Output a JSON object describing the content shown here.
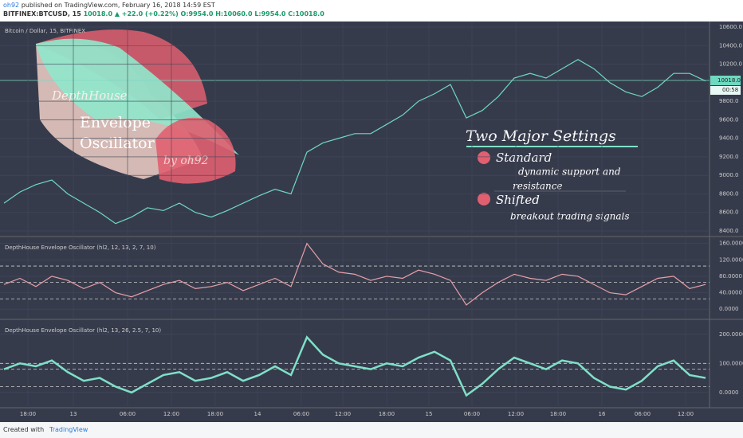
{
  "header": {
    "author": "oh92",
    "published": "published on TradingView.com, February 16, 2018 14:59 EST",
    "symbol": "BITFINEX:BTCUSD, 15",
    "last": "10018.0",
    "change": "▲ +22.0 (+0.22%)",
    "ohlc": "O:9954.0 H:10060.0 L:9954.0 C:10018.0"
  },
  "overlay": {
    "title1": "DepthHouse",
    "title2": "Envelope",
    "title3": "Oscillator",
    "by": "by oh92",
    "settings_title": "Two Major Settings",
    "standard": "Standard",
    "standard_desc1": "dynamic support and",
    "standard_desc2": "resistance",
    "shifted": "Shifted",
    "shifted_desc": "breakout trading signals"
  },
  "price_label": {
    "value": "10018.0",
    "countdown": "00:58"
  },
  "footer": {
    "created": "Created with",
    "brand": "TradingView"
  },
  "chart_data": [
    {
      "type": "line",
      "title": "Bitcoin / Dollar, 15, BITFINEX",
      "color": "#6fd8c0",
      "xlim": [
        -0.25,
        44.25
      ],
      "ylim": [
        8340,
        10660
      ],
      "yticks": [
        {
          "value": 10600,
          "label": "10600.0"
        },
        {
          "value": 10400,
          "label": "10400.0"
        },
        {
          "value": 10200,
          "label": "10200.0"
        },
        {
          "value": 9800,
          "label": "9800.0"
        },
        {
          "value": 9600,
          "label": "9600.0"
        },
        {
          "value": 9400,
          "label": "9400.0"
        },
        {
          "value": 9200,
          "label": "9200.0"
        },
        {
          "value": 9000,
          "label": "9000.0"
        },
        {
          "value": 8800,
          "label": "8800.0"
        },
        {
          "value": 8600,
          "label": "8600.0"
        },
        {
          "value": 8400,
          "label": "8400.0"
        }
      ],
      "values": [
        8700,
        8820,
        8900,
        8950,
        8800,
        8700,
        8600,
        8480,
        8550,
        8650,
        8620,
        8700,
        8600,
        8550,
        8620,
        8700,
        8780,
        8850,
        8800,
        9250,
        9350,
        9400,
        9450,
        9450,
        9550,
        9650,
        9800,
        9880,
        9980,
        9620,
        9700,
        9850,
        10050,
        10100,
        10050,
        10150,
        10250,
        10150,
        10000,
        9900,
        9850,
        9950,
        10100,
        10100,
        10018
      ],
      "xticks": [
        {
          "value": 1.5,
          "label": "18:00"
        },
        {
          "value": 4.35,
          "label": "13"
        },
        {
          "value": 7.75,
          "label": "06:00"
        },
        {
          "value": 10.5,
          "label": "12:00"
        },
        {
          "value": 13.25,
          "label": "18:00"
        },
        {
          "value": 15.9,
          "label": "14"
        },
        {
          "value": 18.65,
          "label": "06:00"
        },
        {
          "value": 21.25,
          "label": "12:00"
        },
        {
          "value": 24,
          "label": "18:00"
        },
        {
          "value": 26.65,
          "label": "15"
        },
        {
          "value": 29.35,
          "label": "06:00"
        },
        {
          "value": 32.1,
          "label": "12:00"
        },
        {
          "value": 34.75,
          "label": "18:00"
        },
        {
          "value": 37.5,
          "label": "16"
        },
        {
          "value": 40.05,
          "label": "06:00"
        },
        {
          "value": 42.75,
          "label": "12:00"
        }
      ]
    },
    {
      "type": "line",
      "title": "DepthHouse Envelope Oscillator (hl2, 12, 13, 2, 7, 10)",
      "color": "#e8a0a8",
      "xlim": [
        -0.25,
        44.25
      ],
      "ylim": [
        -23,
        173
      ],
      "yticks": [
        {
          "value": 160,
          "label": "160.0000"
        },
        {
          "value": 120,
          "label": "120.0000"
        },
        {
          "value": 80,
          "label": "80.0000"
        },
        {
          "value": 40,
          "label": "40.0000"
        },
        {
          "value": 0,
          "label": "0.0000"
        }
      ],
      "levels": [
        105,
        65,
        25
      ],
      "values": [
        60,
        75,
        55,
        80,
        70,
        50,
        65,
        40,
        30,
        45,
        60,
        70,
        50,
        55,
        65,
        45,
        60,
        75,
        55,
        160,
        110,
        90,
        85,
        70,
        80,
        75,
        95,
        85,
        70,
        10,
        40,
        65,
        85,
        75,
        70,
        85,
        80,
        60,
        40,
        35,
        55,
        75,
        80,
        50,
        60
      ]
    },
    {
      "type": "line",
      "title": "DepthHouse Envelope Oscillator (hl2, 13, 26, 2.5, 7, 10)",
      "color": "#7fe0c8",
      "xlim": [
        -0.25,
        44.25
      ],
      "ylim": [
        -47,
        246
      ],
      "yticks": [
        {
          "value": 200,
          "label": "200.0000"
        },
        {
          "value": 100,
          "label": "100.0000"
        },
        {
          "value": 0,
          "label": "0.0000"
        }
      ],
      "levels": [
        100,
        80,
        20
      ],
      "values": [
        80,
        100,
        90,
        110,
        70,
        40,
        50,
        20,
        0,
        30,
        60,
        70,
        40,
        50,
        70,
        40,
        60,
        90,
        60,
        190,
        130,
        100,
        90,
        80,
        100,
        90,
        120,
        140,
        110,
        -10,
        30,
        80,
        120,
        100,
        80,
        110,
        100,
        50,
        20,
        10,
        40,
        90,
        110,
        60,
        50
      ]
    }
  ]
}
